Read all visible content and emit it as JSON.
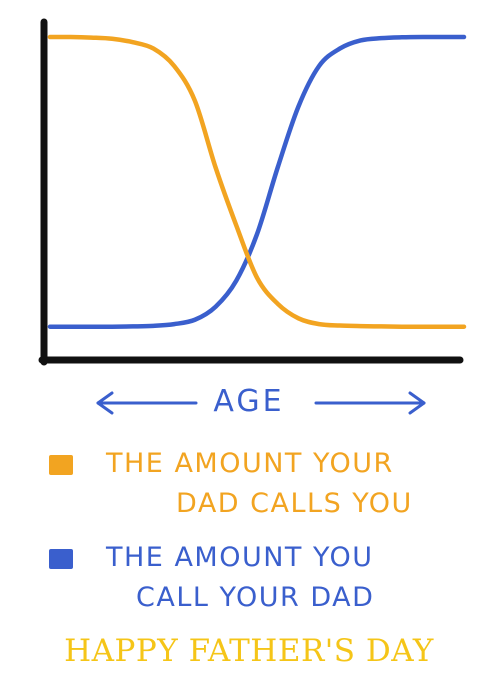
{
  "colors": {
    "orange": "#F2A421",
    "blue": "#3A5FCD",
    "axis": "#111111",
    "greeting": "#F5C518"
  },
  "chart_data": {
    "type": "line",
    "xlabel": "AGE",
    "ylabel": "",
    "x": [
      0,
      5,
      10,
      15,
      20,
      25,
      30,
      35,
      40,
      45,
      50,
      55,
      60,
      65,
      70,
      75,
      80,
      85,
      90,
      95,
      100
    ],
    "series": [
      {
        "name": "THE AMOUNT YOUR DAD CALLS YOU",
        "color": "#F2A421",
        "values": [
          100,
          100,
          99.8,
          99.4,
          98.2,
          96,
          90,
          78,
          55,
          35,
          17,
          8,
          3,
          1,
          0.5,
          0.3,
          0.2,
          0.1,
          0.1,
          0.1,
          0.1
        ]
      },
      {
        "name": "THE AMOUNT YOU CALL YOUR DAD",
        "color": "#3A5FCD",
        "values": [
          0.1,
          0.1,
          0.1,
          0.1,
          0.2,
          0.4,
          1,
          2.5,
          7,
          16,
          32,
          55,
          76,
          90,
          96,
          98.8,
          99.6,
          99.9,
          100,
          100,
          100
        ]
      }
    ],
    "xlim": [
      0,
      100
    ],
    "ylim": [
      0,
      100
    ],
    "grid": false
  },
  "legend": {
    "items": [
      {
        "line1": "THE AMOUNT YOUR",
        "line2": "DAD CALLS YOU",
        "color": "#F2A421"
      },
      {
        "line1": "THE AMOUNT YOU",
        "line2": "CALL YOUR DAD",
        "color": "#3A5FCD"
      }
    ]
  },
  "greeting": "HAPPY FATHER'S DAY"
}
